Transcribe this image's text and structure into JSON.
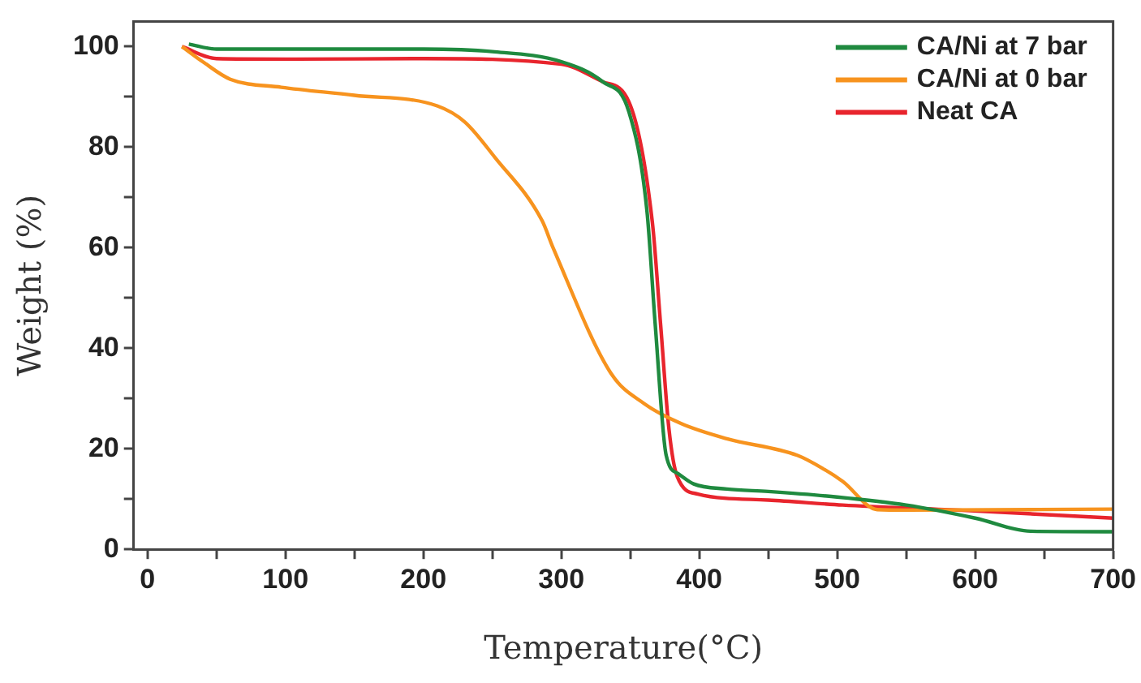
{
  "chart_data": {
    "type": "line",
    "xlabel": "Temperature(°C)",
    "ylabel": "Weight (%)",
    "xlim": [
      -10,
      700
    ],
    "ylim": [
      0,
      105
    ],
    "xticks": [
      0,
      {
        "value": 50,
        "label": null
      },
      100,
      {
        "value": 150,
        "label": null
      },
      200,
      {
        "value": 250,
        "label": null
      },
      300,
      {
        "value": 350,
        "label": null
      },
      400,
      {
        "value": 450,
        "label": null
      },
      500,
      {
        "value": 550,
        "label": null
      },
      600,
      {
        "value": 650,
        "label": null
      },
      700
    ],
    "yticks": [
      0,
      {
        "value": 10,
        "label": null
      },
      20,
      {
        "value": 30,
        "label": null
      },
      40,
      {
        "value": 50,
        "label": null
      },
      60,
      {
        "value": 70,
        "label": null
      },
      80,
      {
        "value": 90,
        "label": null
      },
      100
    ],
    "legend": "top right",
    "grid": false,
    "marker": "none",
    "line_style": "solid",
    "series": [
      {
        "name": "CA/Ni at 7 bar",
        "color": "#1f8a3f",
        "x": [
          30,
          50,
          100,
          200,
          250,
          300,
          330,
          349,
          362,
          368,
          376,
          385,
          396,
          420,
          450,
          500,
          550,
          600,
          640,
          700
        ],
        "values": [
          100.5,
          99.5,
          99.5,
          99.5,
          99,
          97,
          93,
          87,
          67.5,
          45,
          18.7,
          15,
          13,
          12,
          11.5,
          10.4,
          8.8,
          6.2,
          3.6,
          3.5
        ]
      },
      {
        "name": "CA/Ni at 0 bar",
        "color": "#f7931e",
        "x": [
          25,
          40,
          60,
          97,
          150,
          210,
          230,
          252,
          286,
          294,
          336,
          360,
          387,
          420,
          471,
          490,
          504,
          529,
          550,
          700
        ],
        "values": [
          100,
          97,
          93.5,
          91.9,
          90.3,
          88.2,
          85,
          77.9,
          65.4,
          60,
          35,
          29,
          25,
          22,
          18.7,
          16,
          13.5,
          7.9,
          7.8,
          8
        ]
      },
      {
        "name": "Neat CA",
        "color": "#e8252d",
        "x": [
          25,
          50,
          100,
          200,
          300,
          330,
          349,
          366,
          372,
          378,
          384,
          399,
          450,
          504,
          588,
          700
        ],
        "values": [
          100,
          97.6,
          97.5,
          97.6,
          96.5,
          93,
          89,
          65,
          44.6,
          24,
          14.5,
          11,
          9.8,
          8.8,
          7.8,
          6.2
        ]
      }
    ]
  }
}
